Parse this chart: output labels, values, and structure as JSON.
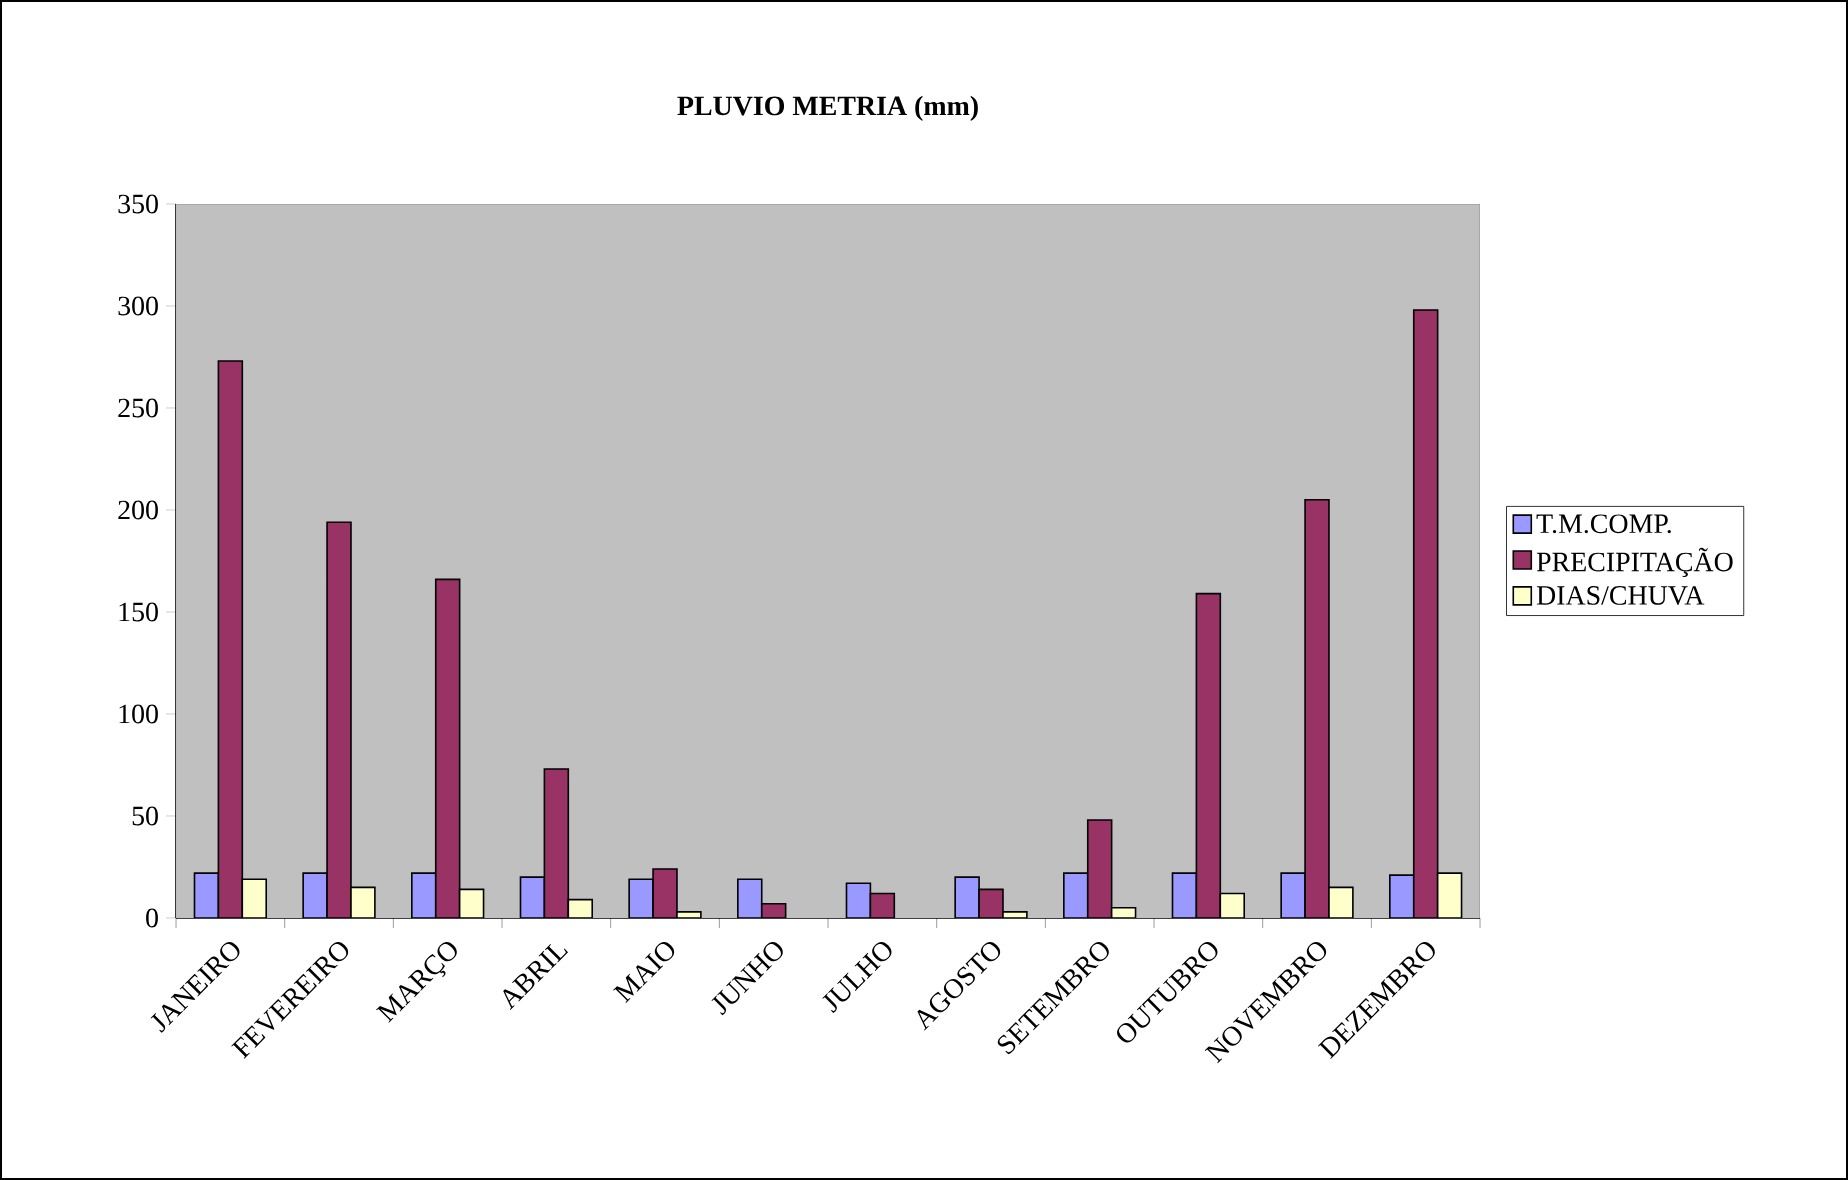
{
  "chart_data": {
    "type": "bar",
    "title": "**PLUVIO METRIA (mm)**",
    "categories": [
      "JANEIRO",
      "FEVEREIRO",
      "MARÇO",
      "ABRIL",
      "MAIO",
      "JUNHO",
      "JULHO",
      "AGOSTO",
      "SETEMBRO",
      "OUTUBRO",
      "NOVEMBRO",
      "DEZEMBRO"
    ],
    "series": [
      {
        "name": "T.M.COMP.",
        "color": "#9999ff",
        "values": [
          22,
          22,
          22,
          20,
          19,
          19,
          17,
          20,
          22,
          22,
          22,
          21
        ]
      },
      {
        "name": "PRECIPITAÇÃO",
        "color": "#993366",
        "values": [
          273,
          194,
          166,
          73,
          24,
          7,
          12,
          14,
          48,
          159,
          205,
          298
        ]
      },
      {
        "name": "DIAS/CHUVA",
        "color": "#ffffcc",
        "values": [
          19,
          15,
          14,
          9,
          3,
          null,
          null,
          3,
          5,
          12,
          15,
          22
        ]
      }
    ],
    "ylim": [
      0,
      350
    ],
    "yticks": [
      0,
      50,
      100,
      150,
      200,
      250,
      300,
      350
    ],
    "grid": false,
    "legend": "right"
  }
}
